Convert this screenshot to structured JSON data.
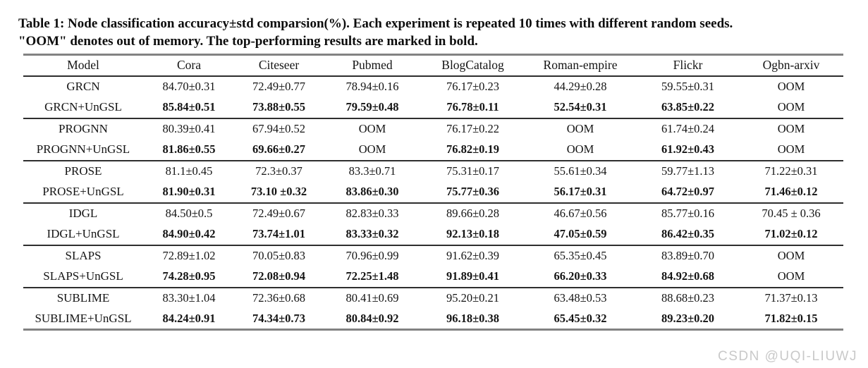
{
  "caption": {
    "line1": "Table 1: Node classification accuracy±std comparsion(%). Each experiment is repeated 10 times with different random seeds.",
    "line2": "\"OOM\" denotes out of memory. The top-performing results are marked in bold."
  },
  "watermark": "CSDN @UQI-LIUWJ",
  "colors": {
    "heavy_rule": "#828282",
    "light_rule": "#2e2e2e",
    "text": "#141414",
    "watermark": "#c9c9c9"
  },
  "table": {
    "columns": [
      "Model",
      "Cora",
      "Citeseer",
      "Pubmed",
      "BlogCatalog",
      "Roman-empire",
      "Flickr",
      "Ogbn-arxiv"
    ],
    "groups": [
      {
        "rows": [
          {
            "model": "GRCN",
            "bold": false,
            "values": [
              "84.70±0.31",
              "72.49±0.77",
              "78.94±0.16",
              "76.17±0.23",
              "44.29±0.28",
              "59.55±0.31",
              "OOM"
            ]
          },
          {
            "model": "GRCN+UnGSL",
            "bold": true,
            "values": [
              "85.84±0.51",
              "73.88±0.55",
              "79.59±0.48",
              "76.78±0.11",
              "52.54±0.31",
              "63.85±0.22",
              "OOM"
            ]
          }
        ]
      },
      {
        "rows": [
          {
            "model": "PROGNN",
            "bold": false,
            "values": [
              "80.39±0.41",
              "67.94±0.52",
              "OOM",
              "76.17±0.22",
              "OOM",
              "61.74±0.24",
              "OOM"
            ]
          },
          {
            "model": "PROGNN+UnGSL",
            "bold": true,
            "values": [
              "81.86±0.55",
              "69.66±0.27",
              "OOM",
              "76.82±0.19",
              "OOM",
              "61.92±0.43",
              "OOM"
            ]
          }
        ]
      },
      {
        "rows": [
          {
            "model": "PROSE",
            "bold": false,
            "values": [
              "81.1±0.45",
              "72.3±0.37",
              "83.3±0.71",
              "75.31±0.17",
              "55.61±0.34",
              "59.77±1.13",
              "71.22±0.31"
            ]
          },
          {
            "model": "PROSE+UnGSL",
            "bold": true,
            "values": [
              "81.90±0.31",
              "73.10 ±0.32",
              "83.86±0.30",
              "75.77±0.36",
              "56.17±0.31",
              "64.72±0.97",
              "71.46±0.12"
            ]
          }
        ]
      },
      {
        "rows": [
          {
            "model": "IDGL",
            "bold": false,
            "values": [
              "84.50±0.5",
              "72.49±0.67",
              "82.83±0.33",
              "89.66±0.28",
              "46.67±0.56",
              "85.77±0.16",
              "70.45 ± 0.36"
            ]
          },
          {
            "model": "IDGL+UnGSL",
            "bold": true,
            "values": [
              "84.90±0.42",
              "73.74±1.01",
              "83.33±0.32",
              "92.13±0.18",
              "47.05±0.59",
              "86.42±0.35",
              "71.02±0.12"
            ]
          }
        ]
      },
      {
        "rows": [
          {
            "model": "SLAPS",
            "bold": false,
            "values": [
              "72.89±1.02",
              "70.05±0.83",
              "70.96±0.99",
              "91.62±0.39",
              "65.35±0.45",
              "83.89±0.70",
              "OOM"
            ]
          },
          {
            "model": "SLAPS+UnGSL",
            "bold": true,
            "values": [
              "74.28±0.95",
              "72.08±0.94",
              "72.25±1.48",
              "91.89±0.41",
              "66.20±0.33",
              "84.92±0.68",
              "OOM"
            ]
          }
        ]
      },
      {
        "rows": [
          {
            "model": "SUBLIME",
            "bold": false,
            "values": [
              "83.30±1.04",
              "72.36±0.68",
              "80.41±0.69",
              "95.20±0.21",
              "63.48±0.53",
              "88.68±0.23",
              "71.37±0.13"
            ]
          },
          {
            "model": "SUBLIME+UnGSL",
            "bold": true,
            "values": [
              "84.24±0.91",
              "74.34±0.73",
              "80.84±0.92",
              "96.18±0.38",
              "65.45±0.32",
              "89.23±0.20",
              "71.82±0.15"
            ]
          }
        ]
      }
    ]
  }
}
